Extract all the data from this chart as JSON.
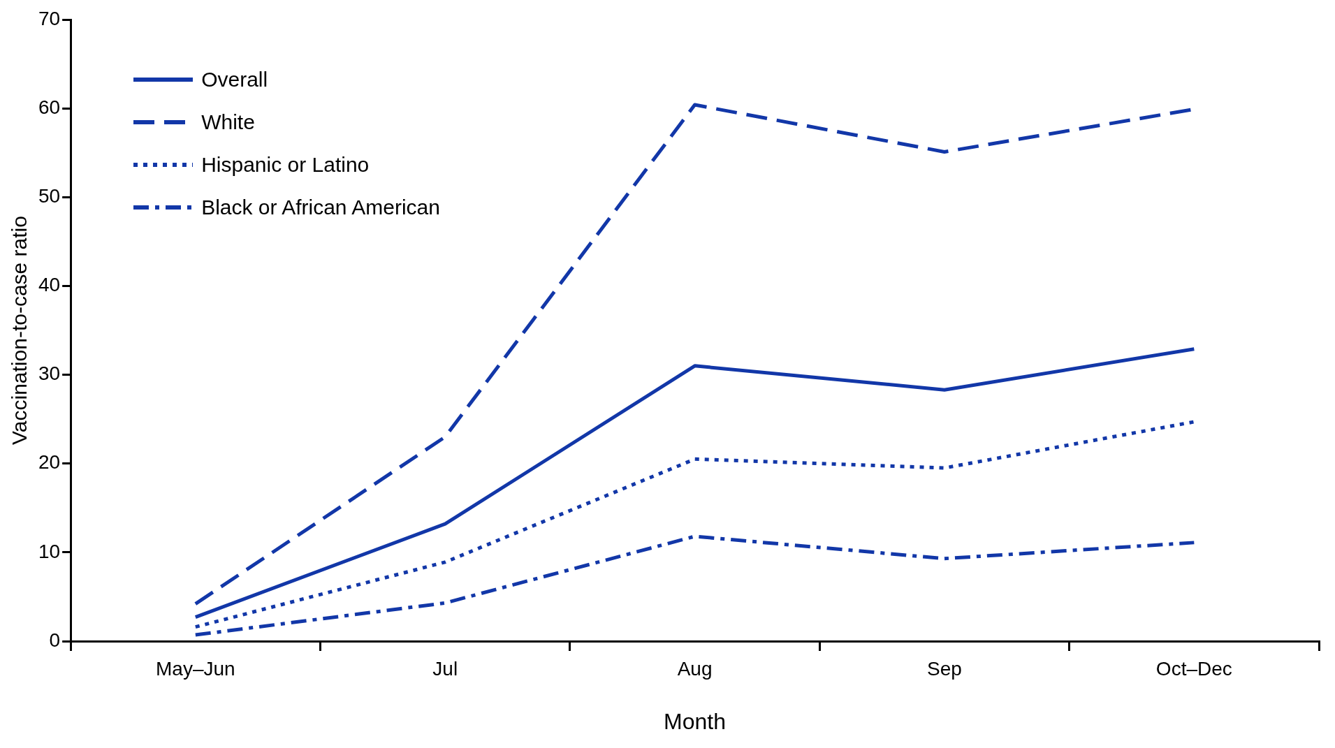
{
  "chart_data": {
    "type": "line",
    "xlabel": "Month",
    "ylabel": "Vaccination-to-case ratio",
    "categories": [
      "May–Jun",
      "Jul",
      "Aug",
      "Sep",
      "Oct–Dec"
    ],
    "series": [
      {
        "name": "Overall",
        "color": "#1237a8",
        "line_style": "solid",
        "values": [
          2.7,
          13.2,
          31.0,
          28.3,
          32.9
        ]
      },
      {
        "name": "White",
        "color": "#1237a8",
        "line_style": "dashed",
        "values": [
          4.2,
          23.0,
          60.4,
          55.1,
          59.9
        ]
      },
      {
        "name": "Hispanic or Latino",
        "color": "#1237a8",
        "line_style": "dotted",
        "values": [
          1.6,
          8.9,
          20.5,
          19.5,
          24.7
        ]
      },
      {
        "name": "Black or African American",
        "color": "#1237a8",
        "line_style": "dashdot",
        "values": [
          0.7,
          4.3,
          11.8,
          9.3,
          11.1
        ]
      }
    ],
    "ylim": [
      0,
      70
    ],
    "yticks": [
      0,
      10,
      20,
      30,
      40,
      50,
      60,
      70
    ],
    "grid": false,
    "legend": "top left",
    "marker": "none"
  }
}
